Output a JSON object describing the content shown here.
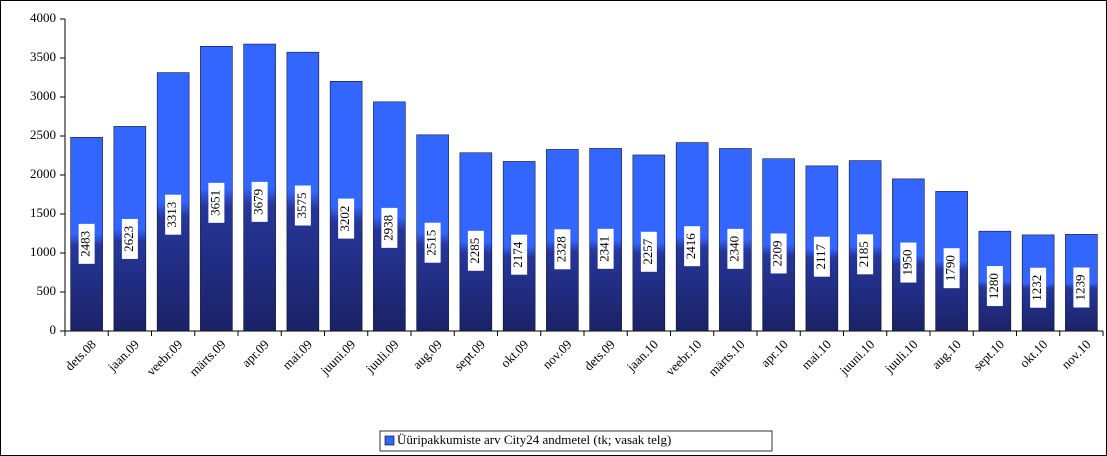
{
  "chart_data": {
    "type": "bar",
    "categories": [
      "dets.08",
      "jaan.09",
      "veebr.09",
      "märts.09",
      "apr.09",
      "mai.09",
      "juuni.09",
      "juuli.09",
      "aug.09",
      "sept.09",
      "okt.09",
      "nov.09",
      "dets.09",
      "jaan.10",
      "veebr.10",
      "märts.10",
      "apr.10",
      "mai.10",
      "juuni.10",
      "juuli.10",
      "aug.10",
      "sept.10",
      "okt.10",
      "nov.10"
    ],
    "series": [
      {
        "name": "Üüripakkumiste arv City24 andmetel (tk; vasak telg)",
        "color": "#3366ff",
        "values": [
          2483,
          2623,
          3313,
          3651,
          3679,
          3575,
          3202,
          2938,
          2515,
          2285,
          2174,
          2328,
          2341,
          2257,
          2416,
          2340,
          2209,
          2117,
          2185,
          1950,
          1790,
          1280,
          1232,
          1239
        ]
      }
    ],
    "ylim": [
      0,
      4000
    ],
    "yticks": [
      0,
      500,
      1000,
      1500,
      2000,
      2500,
      3000,
      3500,
      4000
    ],
    "grid": false,
    "legend": "bottom"
  }
}
